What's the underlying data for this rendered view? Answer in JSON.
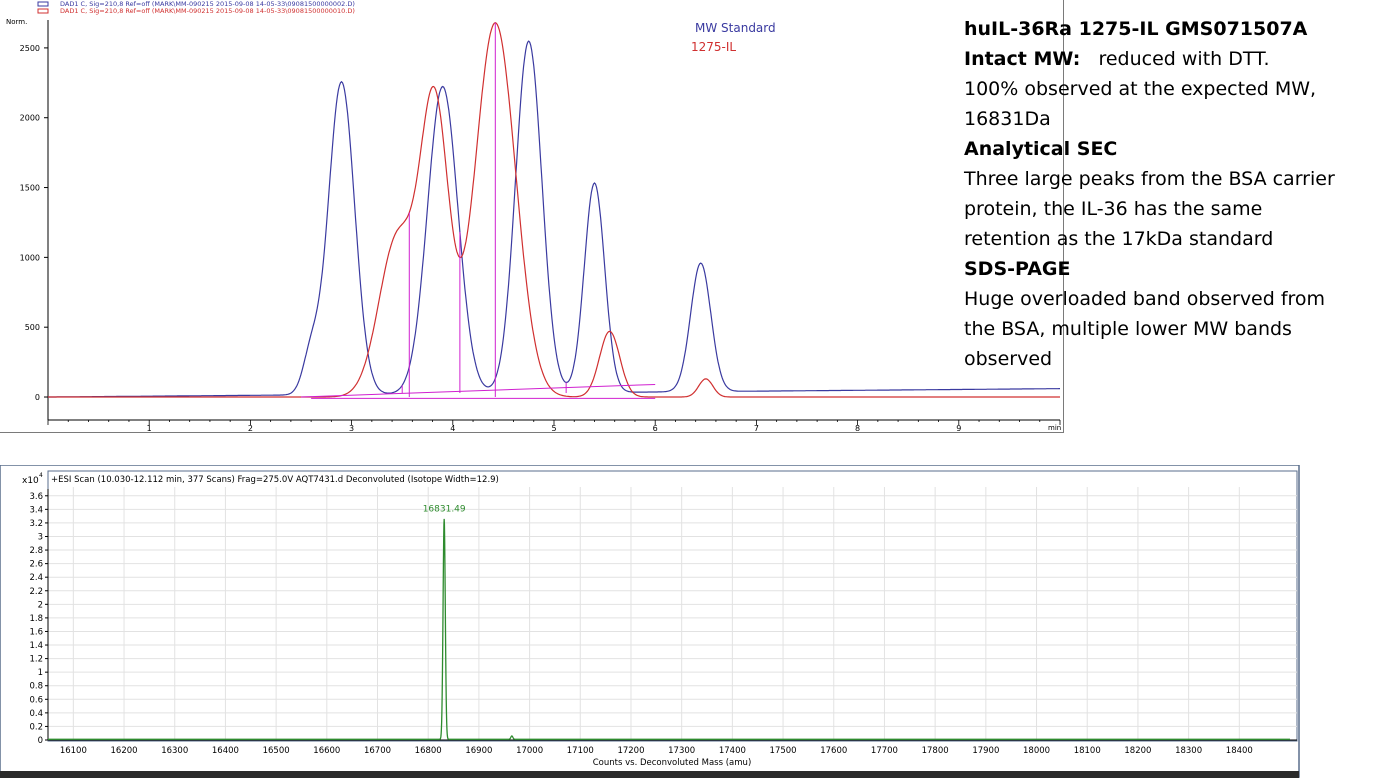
{
  "sec": {
    "header_lines": [
      {
        "text": "DAD1 C, Sig=210,8 Ref=off (MARK\\MM-090215 2015-09-08 14-05-33\\09081500000002.D)",
        "color": "#3a3aa0"
      },
      {
        "text": "DAD1 C, Sig=210,8 Ref=off (MARK\\MM-090215 2015-09-08 14-05-33\\09081500000010.D)",
        "color": "#d03030"
      }
    ],
    "y_unit": "Norm.",
    "x_unit": "min",
    "legend": [
      {
        "label": "MW Standard",
        "color": "#3a3aa0"
      },
      {
        "label": "1275-IL",
        "color": "#d03030"
      }
    ]
  },
  "notes": {
    "title": "huIL-36Ra 1275-IL GMS071507A",
    "intact_label": "Intact MW:",
    "intact_text": "reduced with DTT.",
    "intact_line2": "100% observed at the expected MW,",
    "intact_line3": "16831Da",
    "sec_heading": "Analytical SEC",
    "sec_line1": "Three large peaks from the BSA carrier",
    "sec_line2": "protein, the IL-36 has the same",
    "sec_line3": "retention as the 17kDa standard",
    "sds_heading": "SDS-PAGE",
    "sds_line1": "Huge overloaded band observed from",
    "sds_line2": "the BSA, multiple lower MW bands",
    "sds_line3": "observed"
  },
  "ms": {
    "header": "+ESI Scan (10.030-12.112 min, 377 Scans) Frag=275.0V AQT7431.d  Deconvoluted (Isotope Width=12.9)",
    "y_multiplier": "x10",
    "y_exponent": "4",
    "x_axis_label": "Counts vs. Deconvoluted Mass (amu)",
    "peak_label": "16831.49"
  },
  "chart_data": [
    {
      "type": "line",
      "title": "",
      "xlabel": "min",
      "ylabel": "Norm.",
      "xlim": [
        0,
        10
      ],
      "ylim": [
        -50,
        2800
      ],
      "x_ticks": [
        1,
        2,
        3,
        4,
        5,
        6,
        7,
        8,
        9
      ],
      "y_ticks": [
        0,
        500,
        1000,
        1500,
        2000,
        2500
      ],
      "grid": false,
      "series": [
        {
          "name": "MW Standard",
          "color": "#3a3aa0",
          "baseline": [
            0,
            60
          ],
          "peaks": [
            {
              "x": 2.9,
              "height": 2240,
              "width": 0.13
            },
            {
              "x": 2.6,
              "height": 280,
              "width": 0.08
            },
            {
              "x": 3.9,
              "height": 2200,
              "width": 0.15
            },
            {
              "x": 4.75,
              "height": 2520,
              "width": 0.13
            },
            {
              "x": 5.4,
              "height": 1500,
              "width": 0.1
            },
            {
              "x": 6.45,
              "height": 920,
              "width": 0.1
            }
          ]
        },
        {
          "name": "1275-IL",
          "color": "#d03030",
          "baseline": [
            0,
            0
          ],
          "peaks": [
            {
              "x": 3.45,
              "height": 1130,
              "width": 0.18
            },
            {
              "x": 3.82,
              "height": 2050,
              "width": 0.14
            },
            {
              "x": 4.42,
              "height": 2680,
              "width": 0.2
            },
            {
              "x": 5.55,
              "height": 470,
              "width": 0.1
            },
            {
              "x": 6.5,
              "height": 130,
              "width": 0.07
            }
          ]
        }
      ],
      "integration_drops": [
        3.5,
        3.57,
        4.07,
        4.42,
        5.12,
        5.22
      ],
      "baseline_segments": [
        {
          "from": [
            2.5,
            0
          ],
          "to": [
            6.0,
            90
          ]
        },
        {
          "from": [
            2.6,
            -10
          ],
          "to": [
            6.0,
            -10
          ]
        }
      ],
      "integration_color": "#d020d0"
    },
    {
      "type": "line",
      "title": "",
      "xlabel": "Counts vs. Deconvoluted Mass (amu)",
      "ylabel": "x10^4",
      "xlim": [
        16050,
        18500
      ],
      "ylim": [
        0,
        3.7
      ],
      "x_ticks": [
        16100,
        16200,
        16300,
        16400,
        16500,
        16600,
        16700,
        16800,
        16900,
        17000,
        17100,
        17200,
        17300,
        17400,
        17500,
        17600,
        17700,
        17800,
        17900,
        18000,
        18100,
        18200,
        18300,
        18400
      ],
      "y_ticks": [
        0,
        0.2,
        0.4,
        0.6,
        0.8,
        1,
        1.2,
        1.4,
        1.6,
        1.8,
        2,
        2.2,
        2.4,
        2.6,
        2.8,
        3,
        3.2,
        3.4,
        3.6
      ],
      "grid": true,
      "series": [
        {
          "name": "",
          "color": "#2e8b2e",
          "peaks": [
            {
              "x": 16831.49,
              "height": 3.25,
              "width": 2.2
            },
            {
              "x": 16965,
              "height": 0.05,
              "width": 2
            }
          ]
        }
      ],
      "peak_annotation": {
        "x": 16831.49,
        "label": "16831.49"
      }
    }
  ]
}
